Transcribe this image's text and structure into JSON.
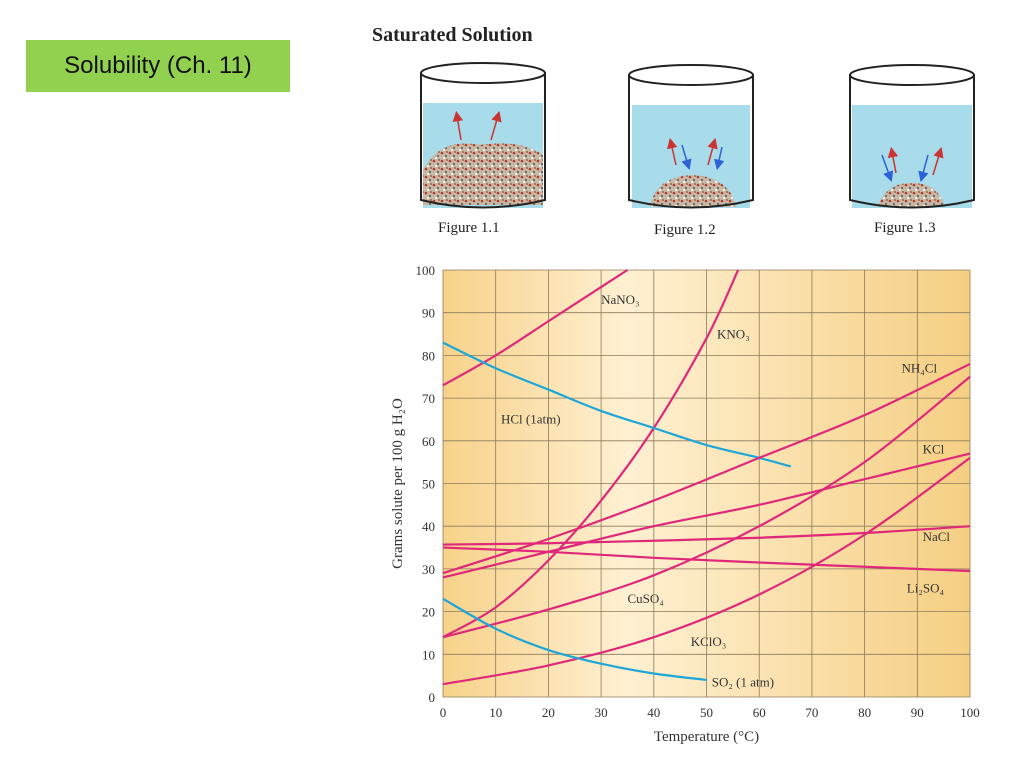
{
  "slide": {
    "title": "Solubility (Ch. 11)"
  },
  "figure": {
    "heading": "Saturated Solution",
    "captions": [
      "Figure 1.1",
      "Figure 1.2",
      "Figure 1.3"
    ]
  },
  "chart_data": {
    "type": "line",
    "xlabel": "Temperature (°C)",
    "ylabel": "Grams solute per 100 g H₂O",
    "xlim": [
      0,
      100
    ],
    "ylim": [
      0,
      100
    ],
    "xticks": [
      0,
      10,
      20,
      30,
      40,
      50,
      60,
      70,
      80,
      90,
      100
    ],
    "yticks": [
      0,
      10,
      20,
      30,
      40,
      50,
      60,
      70,
      80,
      90,
      100
    ],
    "grid": true,
    "colors": {
      "salt": "#e0287a",
      "gas": "#1ea7d6",
      "background": "#f8d690"
    },
    "series": [
      {
        "name": "NaNO₃",
        "color": "salt",
        "x": [
          0,
          10,
          20,
          30,
          35
        ],
        "y": [
          73,
          80,
          88,
          96,
          100
        ]
      },
      {
        "name": "KNO₃",
        "color": "salt",
        "x": [
          0,
          10,
          20,
          30,
          40,
          50,
          56
        ],
        "y": [
          14,
          21,
          32,
          46,
          63,
          84,
          100
        ]
      },
      {
        "name": "HCl (1atm)",
        "color": "gas",
        "x": [
          0,
          10,
          20,
          30,
          40,
          50,
          60,
          66
        ],
        "y": [
          83,
          77,
          72,
          67,
          63,
          59,
          56,
          54
        ]
      },
      {
        "name": "NH₄Cl",
        "color": "salt",
        "x": [
          0,
          20,
          40,
          60,
          80,
          100
        ],
        "y": [
          29,
          37,
          46,
          56,
          66,
          78
        ]
      },
      {
        "name": "KCl",
        "color": "salt",
        "x": [
          0,
          20,
          40,
          60,
          80,
          100
        ],
        "y": [
          28,
          34,
          40,
          45,
          51,
          57
        ]
      },
      {
        "name": "NaCl",
        "color": "salt",
        "x": [
          0,
          20,
          40,
          60,
          80,
          100
        ],
        "y": [
          35.7,
          36,
          36.6,
          37.3,
          38.4,
          40
        ]
      },
      {
        "name": "Li₂SO₄",
        "color": "salt",
        "x": [
          0,
          20,
          40,
          60,
          80,
          100
        ],
        "y": [
          35,
          34,
          32.6,
          31.5,
          30.5,
          29.5
        ]
      },
      {
        "name": "CuSO₄",
        "color": "salt",
        "x": [
          0,
          20,
          40,
          60,
          80,
          100
        ],
        "y": [
          14,
          20.5,
          28.5,
          40,
          55,
          75
        ]
      },
      {
        "name": "KClO₃",
        "color": "salt",
        "x": [
          0,
          20,
          40,
          60,
          80,
          100
        ],
        "y": [
          3,
          7.4,
          14,
          24,
          38,
          56
        ]
      },
      {
        "name": "SO₂ (1 atm)",
        "color": "gas",
        "x": [
          0,
          10,
          20,
          30,
          40,
          50
        ],
        "y": [
          23,
          16,
          11,
          7.8,
          5.5,
          4
        ]
      }
    ]
  }
}
